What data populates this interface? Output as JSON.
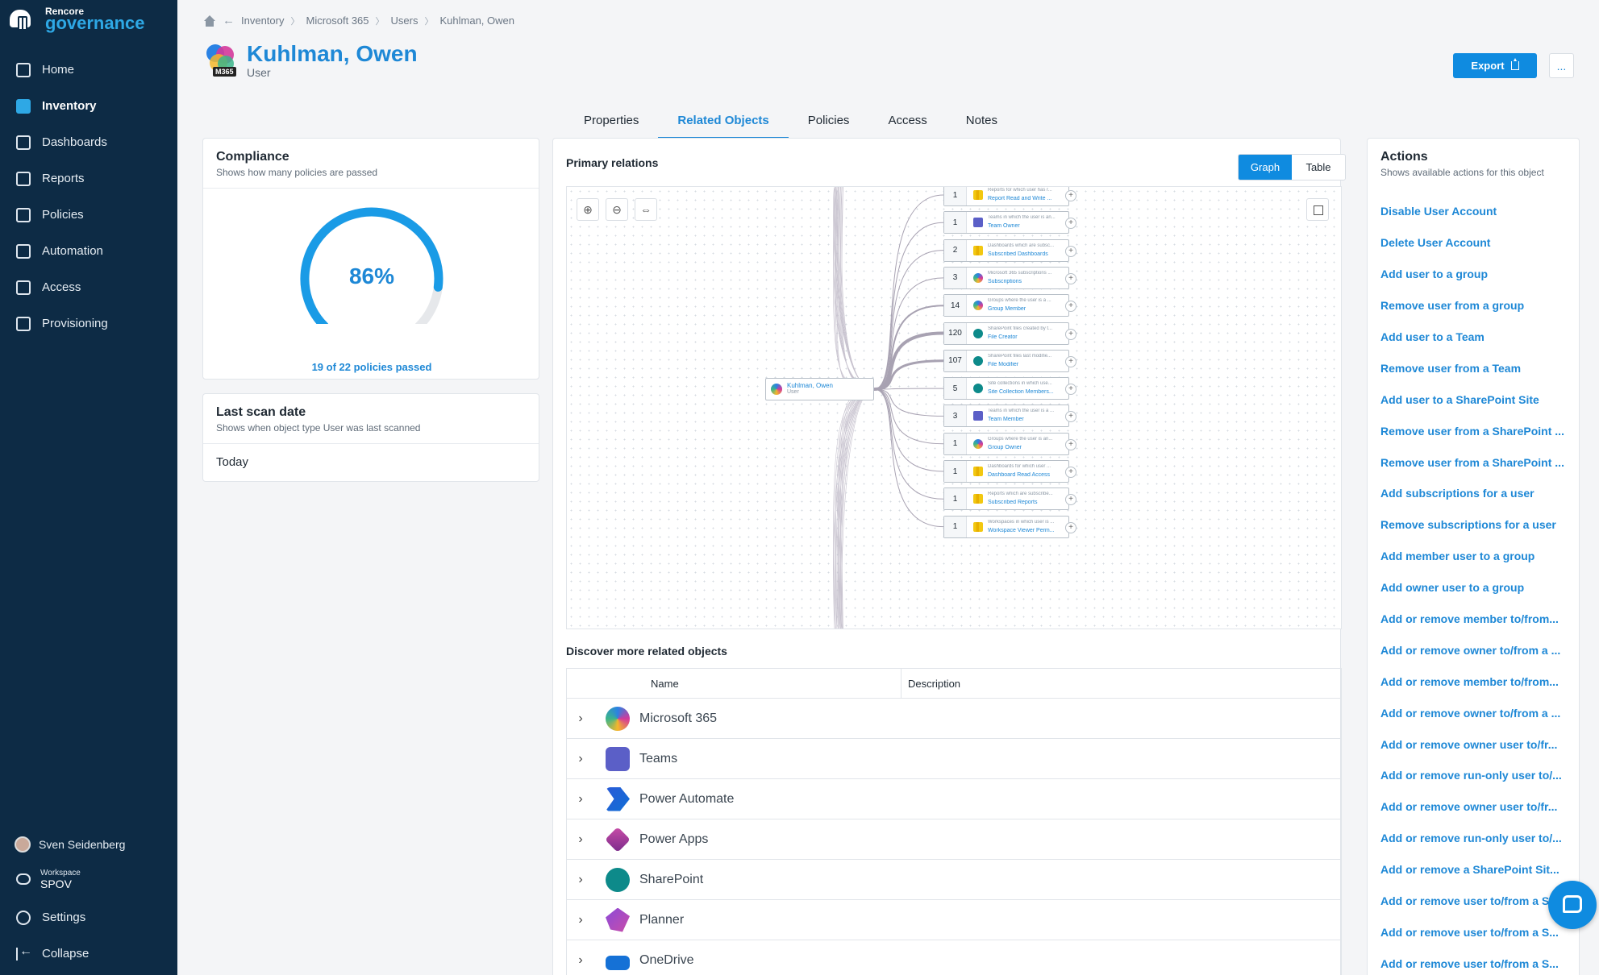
{
  "app": {
    "brand_small": "Rencore",
    "brand_big": "governance"
  },
  "nav": [
    {
      "label": "Home",
      "icon": "home-icon",
      "active": false
    },
    {
      "label": "Inventory",
      "icon": "inventory-icon",
      "active": true
    },
    {
      "label": "Dashboards",
      "icon": "dashboards-icon",
      "active": false
    },
    {
      "label": "Reports",
      "icon": "reports-icon",
      "active": false
    },
    {
      "label": "Policies",
      "icon": "policies-icon",
      "active": false
    },
    {
      "label": "Automation",
      "icon": "automation-icon",
      "active": false
    },
    {
      "label": "Access",
      "icon": "access-icon",
      "active": false
    },
    {
      "label": "Provisioning",
      "icon": "provisioning-icon",
      "active": false
    }
  ],
  "sidebar_bottom": {
    "user": "Sven Seidenberg",
    "workspace_label": "Workspace",
    "workspace_value": "SPOV",
    "settings": "Settings",
    "collapse": "Collapse"
  },
  "breadcrumb": [
    "Inventory",
    "Microsoft 365",
    "Users",
    "Kuhlman, Owen"
  ],
  "header": {
    "title": "Kuhlman, Owen",
    "subtitle": "User",
    "badge": "M365",
    "export_label": "Export",
    "more_label": "..."
  },
  "tabs": [
    "Properties",
    "Related Objects",
    "Policies",
    "Access",
    "Notes"
  ],
  "active_tab": "Related Objects",
  "compliance": {
    "title": "Compliance",
    "subtitle": "Shows how many policies are passed",
    "percent_label": "86%",
    "percent": 86,
    "footer": "19 of 22 policies passed"
  },
  "last_scan": {
    "title": "Last scan date",
    "subtitle": "Shows when object type User was last scanned",
    "value": "Today"
  },
  "relations": {
    "title": "Primary relations",
    "toggle": [
      "Graph",
      "Table"
    ],
    "root": {
      "name": "Kuhlman, Owen",
      "type": "User"
    },
    "nodes": [
      {
        "count": "1",
        "desc": "Reports for which user has r...",
        "label": "Report Read and Write ...",
        "icon": "ic-pbi"
      },
      {
        "count": "1",
        "desc": "Teams in which the user is an...",
        "label": "Team Owner",
        "icon": "ic-teams"
      },
      {
        "count": "2",
        "desc": "Dashboards which are subsc...",
        "label": "Subscribed Dashboards",
        "icon": "ic-pbi"
      },
      {
        "count": "3",
        "desc": "Microsoft 365 subscriptions ...",
        "label": "Subscriptions",
        "icon": "ic-m365"
      },
      {
        "count": "14",
        "desc": "Groups where the user is a ...",
        "label": "Group Member",
        "icon": "ic-m365"
      },
      {
        "count": "120",
        "desc": "SharePoint files created by t...",
        "label": "File Creator",
        "icon": "ic-sp"
      },
      {
        "count": "107",
        "desc": "SharePoint files last modifie...",
        "label": "File Modifier",
        "icon": "ic-sp"
      },
      {
        "count": "5",
        "desc": "Site collections in which use...",
        "label": "Site Collection Members...",
        "icon": "ic-sp"
      },
      {
        "count": "3",
        "desc": "Teams in which the user is a ...",
        "label": "Team Member",
        "icon": "ic-teams"
      },
      {
        "count": "1",
        "desc": "Groups where the user is an...",
        "label": "Group Owner",
        "icon": "ic-m365"
      },
      {
        "count": "1",
        "desc": "Dashboards for which user ...",
        "label": "Dashboard Read Access",
        "icon": "ic-pbi"
      },
      {
        "count": "1",
        "desc": "Reports which are subscribe...",
        "label": "Subscribed Reports",
        "icon": "ic-pbi"
      },
      {
        "count": "1",
        "desc": "Workspaces in which user is ...",
        "label": "Workspace Viewer Perm...",
        "icon": "ic-pbi"
      }
    ]
  },
  "discover": {
    "title": "Discover more related objects",
    "columns": [
      "Name",
      "Description"
    ],
    "rows": [
      {
        "name": "Microsoft 365",
        "icon": "ap-m365"
      },
      {
        "name": "Teams",
        "icon": "ap-teams"
      },
      {
        "name": "Power Automate",
        "icon": "ap-pa"
      },
      {
        "name": "Power Apps",
        "icon": "ap-papps"
      },
      {
        "name": "SharePoint",
        "icon": "ap-sp"
      },
      {
        "name": "Planner",
        "icon": "ap-planner"
      },
      {
        "name": "OneDrive",
        "icon": "ap-onedrive"
      }
    ]
  },
  "actions": {
    "title": "Actions",
    "subtitle": "Shows available actions for this object",
    "items": [
      "Disable User Account",
      "Delete User Account",
      "Add user to a group",
      "Remove user from a group",
      "Add user to a Team",
      "Remove user from a Team",
      "Add user to a SharePoint Site",
      "Remove user from a SharePoint ...",
      "Remove user from a SharePoint ...",
      "Add subscriptions for a user",
      "Remove subscriptions for a user",
      "Add member user to a group",
      "Add owner user to a group",
      "Add or remove member to/from...",
      "Add or remove owner to/from a ...",
      "Add or remove member to/from...",
      "Add or remove owner to/from a ...",
      "Add or remove owner user to/fr...",
      "Add or remove run-only user to/...",
      "Add or remove owner user to/fr...",
      "Add or remove run-only user to/...",
      "Add or remove a SharePoint Sit...",
      "Add or remove user to/from a S...",
      "Add or remove user to/from a S...",
      "Add or remove user to/from a S..."
    ]
  }
}
